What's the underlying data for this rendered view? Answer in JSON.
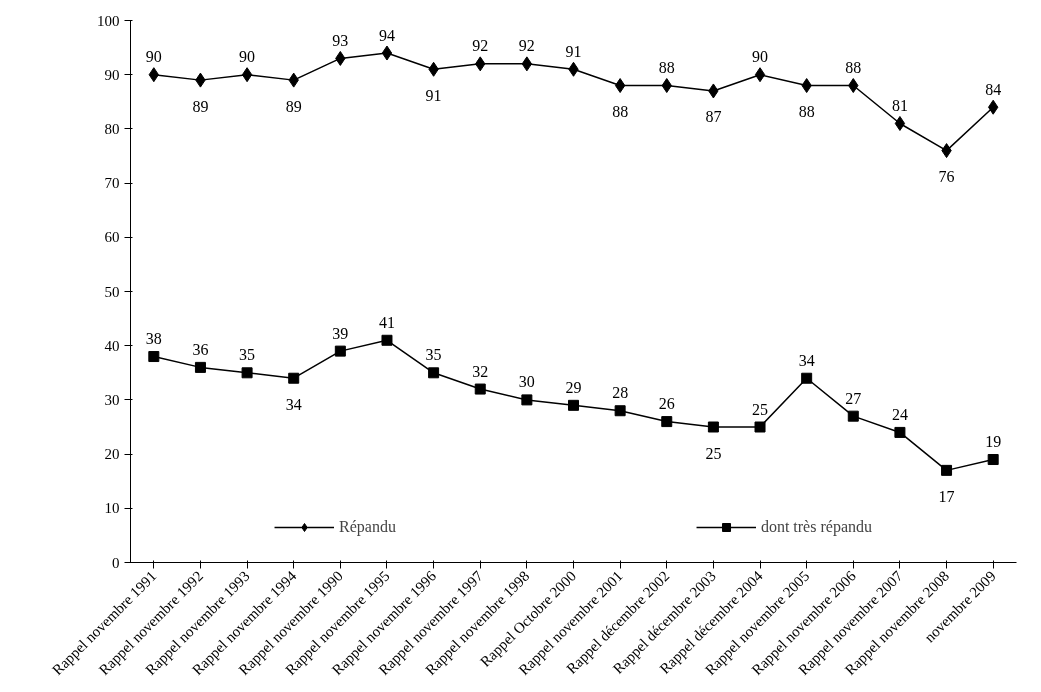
{
  "chart_data": {
    "type": "line",
    "categories": [
      "Rappel novembre 1991",
      "Rappel novembre 1992",
      "Rappel novembre 1993",
      "Rappel novembre 1994",
      "Rappel novembre 1990",
      "Rappel novembre 1995",
      "Rappel novembre 1996",
      "Rappel novembre 1997",
      "Rappel novembre 1998",
      "Rappel Octobre 2000",
      "Rappel novembre 2001",
      "Rappel décembre 2002",
      "Rappel décembre 2003",
      "Rappel décembre 2004",
      "Rappel novembre 2005",
      "Rappel novembre 2006",
      "Rappel novembre 2007",
      "Rappel novembre 2008",
      "novembre 2009"
    ],
    "series": [
      {
        "name": "Répandu",
        "color": "#000000",
        "marker": "diamond",
        "values": [
          90,
          89,
          90,
          89,
          93,
          94,
          91,
          92,
          92,
          91,
          88,
          88,
          87,
          90,
          88,
          88,
          81,
          76,
          84
        ]
      },
      {
        "name": "dont très répandu",
        "color": "#000000",
        "marker": "square",
        "values": [
          38,
          36,
          35,
          34,
          39,
          41,
          35,
          32,
          30,
          29,
          28,
          26,
          25,
          25,
          34,
          27,
          24,
          17,
          19
        ]
      }
    ],
    "ylim": [
      0,
      100
    ],
    "yticks": [
      0,
      10,
      20,
      30,
      40,
      50,
      60,
      70,
      80,
      90,
      100
    ],
    "grid": false,
    "legend": "bottom",
    "data_labels": true,
    "line_style": "solid"
  }
}
